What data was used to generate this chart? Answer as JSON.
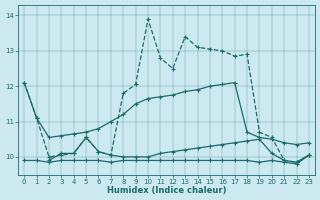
{
  "xlabel": "Humidex (Indice chaleur)",
  "xlim": [
    -0.5,
    23.5
  ],
  "ylim": [
    9.5,
    14.3
  ],
  "yticks": [
    10,
    11,
    12,
    13,
    14
  ],
  "xticks": [
    0,
    1,
    2,
    3,
    4,
    5,
    6,
    7,
    8,
    9,
    10,
    11,
    12,
    13,
    14,
    15,
    16,
    17,
    18,
    19,
    20,
    21,
    22,
    23
  ],
  "bg_color": "#cce9f0",
  "line_color": "#1a6b6b",
  "series": [
    {
      "x": [
        0,
        1,
        2,
        3,
        4,
        5,
        6,
        7,
        8,
        9,
        10,
        11,
        12,
        13,
        14,
        15,
        16,
        17,
        18,
        19,
        20,
        21,
        22,
        23
      ],
      "y": [
        12.1,
        11.1,
        10.0,
        10.05,
        10.1,
        10.55,
        10.15,
        10.05,
        11.8,
        12.05,
        13.9,
        12.8,
        12.5,
        13.4,
        13.1,
        13.05,
        13.0,
        12.85,
        12.9,
        10.7,
        10.55,
        9.9,
        9.85,
        10.05
      ],
      "linestyle": "--",
      "marker": "+",
      "ms": 3.5,
      "lw": 0.9
    },
    {
      "x": [
        0,
        1,
        2,
        3,
        4,
        5,
        6,
        7,
        8,
        9,
        10,
        11,
        12,
        13,
        14,
        15,
        16,
        17,
        18,
        19,
        20,
        21,
        22,
        23
      ],
      "y": [
        12.1,
        11.1,
        10.55,
        10.6,
        10.65,
        10.7,
        10.8,
        11.0,
        11.2,
        11.5,
        11.65,
        11.7,
        11.75,
        11.85,
        11.9,
        12.0,
        12.05,
        12.1,
        10.7,
        10.55,
        10.5,
        10.4,
        10.35,
        10.4
      ],
      "linestyle": "-",
      "marker": "+",
      "ms": 3.5,
      "lw": 0.9
    },
    {
      "x": [
        2,
        3,
        4,
        5,
        6,
        7,
        8,
        9,
        10,
        11,
        12,
        13,
        14,
        15,
        16,
        17,
        18,
        19,
        20,
        21,
        22,
        23
      ],
      "y": [
        9.9,
        10.1,
        10.1,
        10.55,
        10.15,
        10.05,
        10.0,
        10.0,
        10.0,
        10.1,
        10.15,
        10.2,
        10.25,
        10.3,
        10.35,
        10.4,
        10.45,
        10.5,
        10.1,
        9.9,
        9.85,
        10.05
      ],
      "linestyle": "-",
      "marker": "+",
      "ms": 3.5,
      "lw": 0.9
    },
    {
      "x": [
        0,
        1,
        2,
        3,
        4,
        5,
        6,
        7,
        8,
        9,
        10,
        11,
        12,
        13,
        14,
        15,
        16,
        17,
        18,
        19,
        20,
        21,
        22,
        23
      ],
      "y": [
        9.9,
        9.9,
        9.85,
        9.9,
        9.9,
        9.9,
        9.9,
        9.85,
        9.9,
        9.9,
        9.9,
        9.9,
        9.9,
        9.9,
        9.9,
        9.9,
        9.9,
        9.9,
        9.9,
        9.85,
        9.9,
        9.85,
        9.8,
        10.05
      ],
      "linestyle": "-",
      "marker": "+",
      "ms": 3.5,
      "lw": 0.9
    }
  ]
}
